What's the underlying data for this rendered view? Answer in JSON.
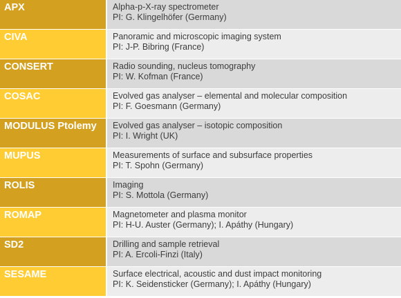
{
  "colors": {
    "dark_accent": "#D4A020",
    "light_accent": "#FFCC33",
    "dark_row_bg": "#D9D9D9",
    "light_row_bg": "#EDEDED",
    "text": "#3C3C3C",
    "name_text": "#FFFFFF"
  },
  "instruments": [
    {
      "name": "APX",
      "description": "Alpha-p-X-ray spectrometer",
      "pi": "PI: G. Klingelhöfer (Germany)"
    },
    {
      "name": "CIVA",
      "description": "Panoramic and microscopic imaging system",
      "pi": "PI: J-P. Bibring (France)"
    },
    {
      "name": "CONSERT",
      "description": "Radio sounding, nucleus tomography",
      "pi": "PI: W. Kofman (France)"
    },
    {
      "name": "COSAC",
      "description": "Evolved gas analyser – elemental and molecular composition",
      "pi": "PI: F. Goesmann (Germany)"
    },
    {
      "name": "MODULUS Ptolemy",
      "description": "Evolved gas analyser – isotopic composition",
      "pi": "PI: I. Wright (UK)"
    },
    {
      "name": "MUPUS",
      "description": "Measurements of surface and subsurface properties",
      "pi": "PI: T. Spohn (Germany)"
    },
    {
      "name": "ROLIS",
      "description": "Imaging",
      "pi": "PI: S. Mottola (Germany)"
    },
    {
      "name": "ROMAP",
      "description": "Magnetometer and plasma monitor",
      "pi": "PI: H-U. Auster (Germany); I. Apáthy (Hungary)"
    },
    {
      "name": "SD2",
      "description": "Drilling and sample retrieval",
      "pi": "PI: A. Ercoli-Finzi (Italy)"
    },
    {
      "name": "SESAME",
      "description": "Surface electrical, acoustic and dust impact monitoring",
      "pi": "PI: K. Seidensticker (Germany); I. Apáthy (Hungary)"
    }
  ]
}
